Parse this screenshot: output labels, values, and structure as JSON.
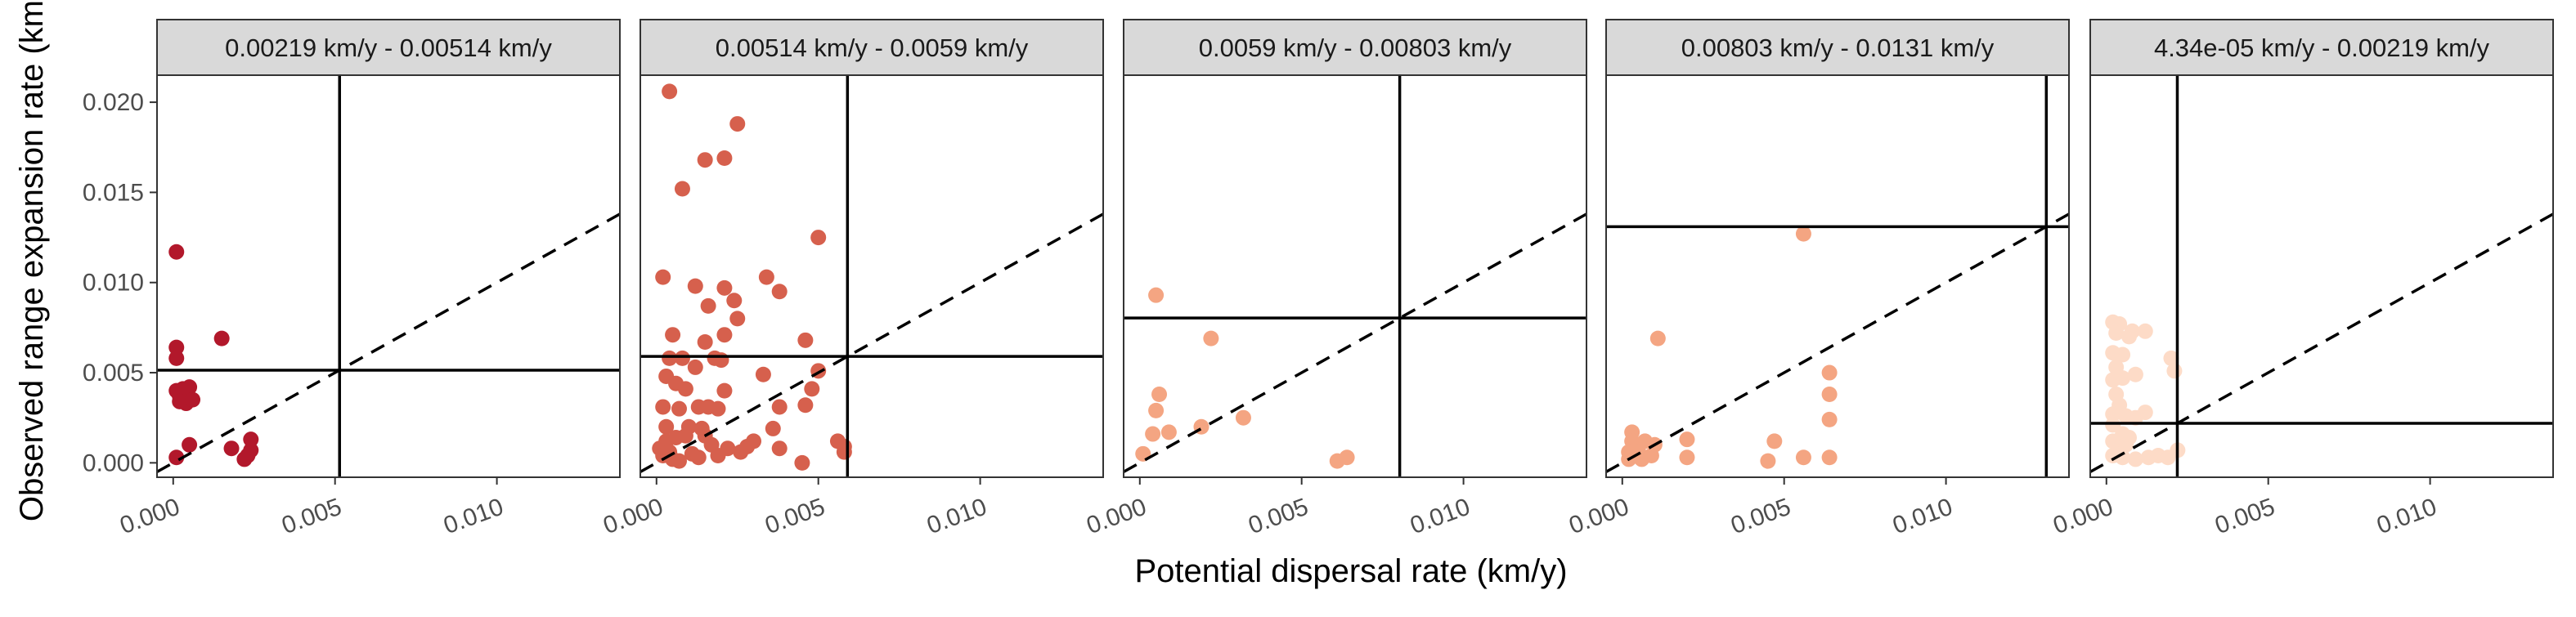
{
  "chart_data": {
    "type": "scatter",
    "layout": "faceted-1x5",
    "xlabel": "Potential dispersal rate (km/y)",
    "ylabel": "Observed range expansion rate (km",
    "xlim": [
      -0.0005,
      0.0138
    ],
    "ylim": [
      -0.0008,
      0.0215
    ],
    "x_ticks": [
      0.0,
      0.005,
      0.01
    ],
    "x_tick_labels": [
      "0.000",
      "0.005",
      "0.010"
    ],
    "y_ticks": [
      0.0,
      0.005,
      0.01,
      0.015,
      0.02
    ],
    "y_tick_labels": [
      "0.000",
      "0.005",
      "0.010",
      "0.015",
      "0.020"
    ],
    "grid": false,
    "reference_line": {
      "style": "dashed",
      "slope": 1,
      "intercept": 0
    },
    "panels": [
      {
        "title": "0.00219 km/y - 0.00514 km/y",
        "color": "#b2182b",
        "vline": 0.00514,
        "hline": 0.00514,
        "points": [
          [
            0.0001,
            0.0117
          ],
          [
            0.0001,
            0.0064
          ],
          [
            0.0001,
            0.0058
          ],
          [
            0.0001,
            0.004
          ],
          [
            0.0002,
            0.0037
          ],
          [
            0.0003,
            0.0041
          ],
          [
            0.0004,
            0.0036
          ],
          [
            0.0005,
            0.0042
          ],
          [
            0.0004,
            0.0033
          ],
          [
            0.0002,
            0.0034
          ],
          [
            0.0006,
            0.0035
          ],
          [
            0.0015,
            0.0069
          ],
          [
            0.0001,
            0.0003
          ],
          [
            0.0005,
            0.001
          ],
          [
            0.0018,
            0.0008
          ],
          [
            0.0022,
            0.0002
          ],
          [
            0.0024,
            0.0007
          ],
          [
            0.0024,
            0.0013
          ],
          [
            0.0023,
            0.0004
          ]
        ]
      },
      {
        "title": "0.00514 km/y - 0.0059 km/y",
        "color": "#d6604d",
        "vline": 0.0059,
        "hline": 0.0059,
        "points": [
          [
            0.0004,
            0.0206
          ],
          [
            0.0025,
            0.0188
          ],
          [
            0.0015,
            0.0168
          ],
          [
            0.0021,
            0.0169
          ],
          [
            0.0008,
            0.0152
          ],
          [
            0.005,
            0.0125
          ],
          [
            0.0002,
            0.0103
          ],
          [
            0.0012,
            0.0098
          ],
          [
            0.0021,
            0.0097
          ],
          [
            0.0034,
            0.0103
          ],
          [
            0.0038,
            0.0095
          ],
          [
            0.0024,
            0.009
          ],
          [
            0.0016,
            0.0087
          ],
          [
            0.0025,
            0.008
          ],
          [
            0.0005,
            0.0071
          ],
          [
            0.0021,
            0.0071
          ],
          [
            0.0015,
            0.0067
          ],
          [
            0.0046,
            0.0068
          ],
          [
            0.0004,
            0.0058
          ],
          [
            0.0008,
            0.0058
          ],
          [
            0.0018,
            0.0058
          ],
          [
            0.002,
            0.0057
          ],
          [
            0.0012,
            0.0053
          ],
          [
            0.0033,
            0.0049
          ],
          [
            0.005,
            0.0051
          ],
          [
            0.0003,
            0.0048
          ],
          [
            0.0006,
            0.0044
          ],
          [
            0.0009,
            0.0041
          ],
          [
            0.0021,
            0.004
          ],
          [
            0.0048,
            0.0041
          ],
          [
            0.0002,
            0.0031
          ],
          [
            0.0007,
            0.003
          ],
          [
            0.0013,
            0.0031
          ],
          [
            0.0016,
            0.0031
          ],
          [
            0.0019,
            0.003
          ],
          [
            0.0038,
            0.0031
          ],
          [
            0.0046,
            0.0032
          ],
          [
            0.0003,
            0.002
          ],
          [
            0.001,
            0.002
          ],
          [
            0.0014,
            0.0019
          ],
          [
            0.0036,
            0.0019
          ],
          [
            0.0003,
            0.0012
          ],
          [
            0.0006,
            0.0014
          ],
          [
            0.0009,
            0.0015
          ],
          [
            0.0015,
            0.0015
          ],
          [
            0.0017,
            0.001
          ],
          [
            0.0022,
            0.0008
          ],
          [
            0.0028,
            0.0009
          ],
          [
            0.003,
            0.0012
          ],
          [
            0.0038,
            0.0008
          ],
          [
            0.0001,
            0.0008
          ],
          [
            0.0002,
            0.0004
          ],
          [
            0.0004,
            0.0006
          ],
          [
            0.0005,
            0.0002
          ],
          [
            0.0007,
            0.0001
          ],
          [
            0.0011,
            0.0005
          ],
          [
            0.0013,
            0.0003
          ],
          [
            0.0019,
            0.0004
          ],
          [
            0.0026,
            0.0006
          ],
          [
            0.0045,
            0.0
          ],
          [
            0.0056,
            0.0012
          ],
          [
            0.0058,
            0.0009
          ],
          [
            0.0058,
            0.0006
          ]
        ]
      },
      {
        "title": "0.0059 km/y - 0.00803 km/y",
        "color": "#f4a582",
        "vline": 0.00803,
        "hline": 0.00803,
        "points": [
          [
            0.0005,
            0.0093
          ],
          [
            0.0022,
            0.0069
          ],
          [
            0.0006,
            0.0038
          ],
          [
            0.0005,
            0.0029
          ],
          [
            0.0004,
            0.0016
          ],
          [
            0.0009,
            0.0017
          ],
          [
            0.0019,
            0.002
          ],
          [
            0.0032,
            0.0025
          ],
          [
            0.0001,
            0.0005
          ],
          [
            0.0061,
            0.0001
          ],
          [
            0.0064,
            0.0003
          ]
        ]
      },
      {
        "title": "0.00803 km/y - 0.0131 km/y",
        "color": "#f4a582",
        "vline": 0.0131,
        "hline": 0.0131,
        "points": [
          [
            0.0056,
            0.0127
          ],
          [
            0.0011,
            0.0069
          ],
          [
            0.0064,
            0.005
          ],
          [
            0.0064,
            0.0038
          ],
          [
            0.0064,
            0.0024
          ],
          [
            0.0003,
            0.0017
          ],
          [
            0.0003,
            0.0012
          ],
          [
            0.0007,
            0.0012
          ],
          [
            0.001,
            0.001
          ],
          [
            0.002,
            0.0013
          ],
          [
            0.0047,
            0.0012
          ],
          [
            0.0002,
            0.0006
          ],
          [
            0.0005,
            0.0006
          ],
          [
            0.0009,
            0.0004
          ],
          [
            0.0002,
            0.0002
          ],
          [
            0.0006,
            0.0002
          ],
          [
            0.002,
            0.0003
          ],
          [
            0.0045,
            0.0001
          ],
          [
            0.0056,
            0.0003
          ],
          [
            0.0064,
            0.0003
          ]
        ]
      },
      {
        "title": "4.34e-05 km/y - 0.00219 km/y",
        "color": "#fddbc7",
        "vline": 0.00219,
        "hline": 0.00219,
        "points": [
          [
            0.0002,
            0.0078
          ],
          [
            0.0004,
            0.0077
          ],
          [
            0.0003,
            0.0072
          ],
          [
            0.0008,
            0.0073
          ],
          [
            0.0012,
            0.0073
          ],
          [
            0.0007,
            0.007
          ],
          [
            0.0002,
            0.0061
          ],
          [
            0.0005,
            0.006
          ],
          [
            0.0003,
            0.0053
          ],
          [
            0.0002,
            0.0046
          ],
          [
            0.0005,
            0.0047
          ],
          [
            0.0009,
            0.0049
          ],
          [
            0.002,
            0.0058
          ],
          [
            0.0021,
            0.0051
          ],
          [
            0.0003,
            0.0038
          ],
          [
            0.0004,
            0.0032
          ],
          [
            0.0002,
            0.0027
          ],
          [
            0.0006,
            0.0026
          ],
          [
            0.0009,
            0.0025
          ],
          [
            0.0012,
            0.0028
          ],
          [
            0.0002,
            0.0021
          ],
          [
            0.0005,
            0.0016
          ],
          [
            0.0007,
            0.0014
          ],
          [
            0.0002,
            0.0012
          ],
          [
            0.0004,
            0.0008
          ],
          [
            0.0006,
            0.001
          ],
          [
            0.0002,
            0.0004
          ],
          [
            0.0005,
            0.0003
          ],
          [
            0.0009,
            0.0002
          ],
          [
            0.0013,
            0.0003
          ],
          [
            0.0016,
            0.0004
          ],
          [
            0.0019,
            0.0003
          ],
          [
            0.0022,
            0.0007
          ]
        ]
      }
    ]
  }
}
